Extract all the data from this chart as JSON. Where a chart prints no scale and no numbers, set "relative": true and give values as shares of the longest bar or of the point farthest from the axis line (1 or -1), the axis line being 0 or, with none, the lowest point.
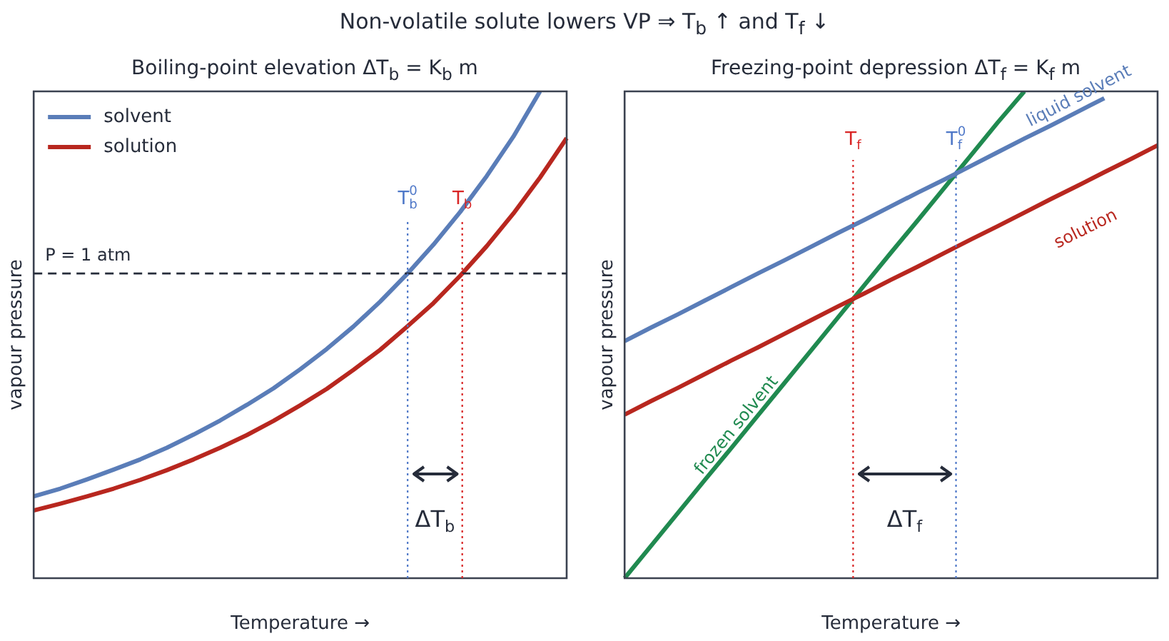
{
  "chart_data": [
    {
      "type": "line",
      "title": "Boiling-point elevation ΔT$_{b}$ = K$_{b}$ m",
      "xlabel": "Temperature →",
      "ylabel": "vapour pressure",
      "relative": true,
      "legend": "top left",
      "line_style": "solid",
      "marker": "none",
      "categories": [
        null,
        null,
        null,
        null,
        null,
        null,
        null,
        null,
        null,
        null,
        null,
        null,
        null,
        null,
        null,
        null,
        null,
        null,
        null,
        null,
        null
      ],
      "series": [
        {
          "name": "solvent",
          "color": "#5a7db8",
          "values": [
            0.168,
            0.184,
            0.203,
            0.223,
            0.244,
            0.268,
            0.295,
            0.324,
            0.356,
            0.39,
            0.429,
            0.471,
            0.517,
            0.568,
            0.624,
            0.685,
            0.752,
            0.826,
            0.907,
            1.0,
            null
          ]
        },
        {
          "name": "solution",
          "color": "#b8271f",
          "values": [
            0.139,
            0.153,
            0.168,
            0.184,
            0.202,
            0.222,
            0.244,
            0.268,
            0.294,
            0.323,
            0.355,
            0.389,
            0.428,
            0.469,
            0.516,
            0.565,
            0.621,
            0.682,
            0.749,
            0.823,
            0.904
          ]
        }
      ],
      "ref_lines": [
        {
          "axis": "y",
          "value": 0.626,
          "label": "P = 1 atm",
          "color": "#262c3a",
          "line_style": "dashed"
        },
        {
          "axis": "x",
          "label": "T$_{b}$$^{0}$",
          "color": "#4f78c8",
          "line_style": "dotted"
        },
        {
          "axis": "x",
          "label": "T$_{b}$",
          "color": "#d92626",
          "line_style": "dotted"
        }
      ],
      "annotations": [
        "Non-volatile solute lowers VP  ⇒  T$_{b}$ ↑  and T$_{f}$ ↓",
        "ΔT$_{b}$"
      ]
    },
    {
      "type": "line",
      "title": "Freezing-point depression ΔT$_{f}$ = K$_{f}$ m",
      "xlabel": "Temperature →",
      "ylabel": "vapour pressure",
      "relative": true,
      "line_style": "solid",
      "marker": "none",
      "categories": [
        null,
        null,
        null,
        null,
        null,
        null,
        null,
        null,
        null,
        null,
        null,
        null,
        null,
        null,
        null,
        null,
        null,
        null,
        null,
        null,
        null
      ],
      "series": [
        {
          "name": "liquid solvent",
          "color": "#5a7db8",
          "values": [
            0.487,
            0.515,
            0.542,
            0.57,
            0.598,
            0.626,
            0.653,
            0.681,
            0.709,
            0.736,
            0.764,
            0.792,
            0.819,
            0.847,
            0.875,
            0.903,
            0.93,
            0.958,
            0.986,
            null,
            null
          ]
        },
        {
          "name": "solution",
          "color": "#b8271f",
          "values": [
            0.336,
            0.364,
            0.391,
            0.419,
            0.447,
            0.474,
            0.502,
            0.53,
            0.558,
            0.585,
            0.613,
            0.64,
            0.668,
            0.696,
            0.723,
            0.751,
            0.779,
            0.806,
            0.834,
            0.861,
            0.889
          ]
        },
        {
          "name": "frozen solvent",
          "color": "#208a50",
          "values": [
            0,
            0.067,
            0.134,
            0.201,
            0.267,
            0.334,
            0.401,
            0.468,
            0.535,
            0.602,
            0.669,
            0.735,
            0.802,
            0.869,
            0.936,
            1.0,
            null,
            null,
            null,
            null,
            null
          ]
        }
      ],
      "ref_lines": [
        {
          "axis": "x",
          "label": "T$_{f}$$^{0}$",
          "color": "#4f78c8",
          "line_style": "dotted"
        },
        {
          "axis": "x",
          "label": "T$_{f}$",
          "color": "#d92626",
          "line_style": "dotted"
        }
      ],
      "annotations": [
        "ΔT$_{f}$"
      ]
    }
  ]
}
